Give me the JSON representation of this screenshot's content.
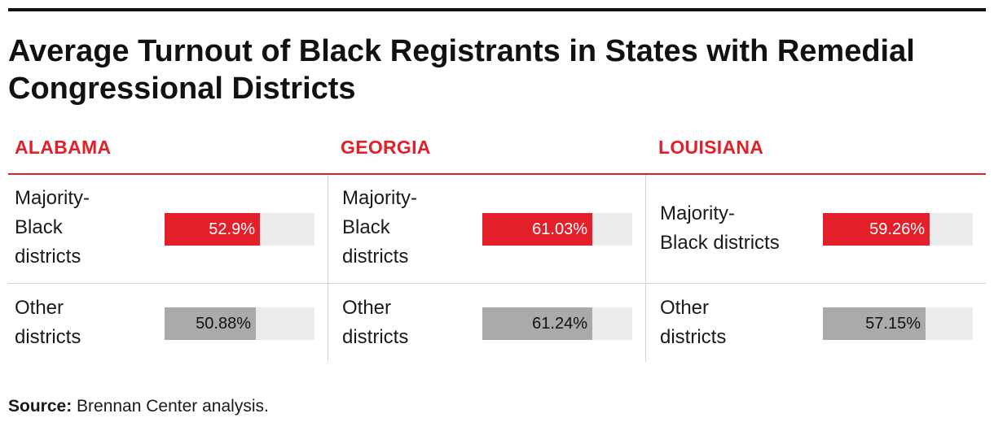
{
  "title": "Average Turnout of Black Registrants in States with Remedial Congressional Districts",
  "source": {
    "label": "Source:",
    "text": " Brennan Center analysis."
  },
  "colors": {
    "accent": "#e3202a",
    "majority_bar": "#e3202a",
    "other_bar": "#aaaaaa",
    "track": "#ebebeb"
  },
  "chart_data": {
    "type": "bar",
    "orientation": "horizontal",
    "xlim": [
      0,
      100
    ],
    "unit": "%",
    "panels": [
      {
        "state": "ALABAMA",
        "rows": [
          {
            "category": "Majority-Black districts",
            "value": 52.9,
            "label": "52.9%"
          },
          {
            "category": "Other districts",
            "value": 50.88,
            "label": "50.88%"
          }
        ]
      },
      {
        "state": "GEORGIA",
        "rows": [
          {
            "category": "Majority-Black districts",
            "value": 61.03,
            "label": "61.03%"
          },
          {
            "category": "Other districts",
            "value": 61.24,
            "label": "61.24%"
          }
        ]
      },
      {
        "state": "LOUISIANA",
        "rows": [
          {
            "category": "Majority-Black districts",
            "value": 59.26,
            "label": "59.26%"
          },
          {
            "category": "Other districts",
            "value": 57.15,
            "label": "57.15%"
          }
        ]
      }
    ]
  },
  "row_labels": {
    "alabama_majority": [
      "Majority-",
      "Black",
      "districts"
    ],
    "georgia_majority": [
      "Majority-",
      "Black",
      "districts"
    ],
    "louisiana_majority": [
      "Majority-",
      "Black districts"
    ],
    "other": [
      "Other",
      "districts"
    ]
  }
}
